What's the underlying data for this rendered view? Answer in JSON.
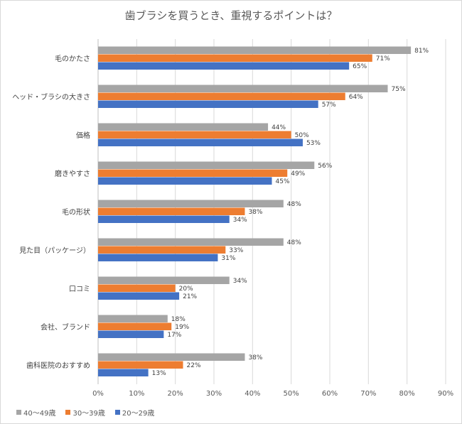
{
  "chart_data": {
    "type": "bar",
    "orientation": "horizontal",
    "title": "歯ブラシを買うとき、重視するポイントは？",
    "categories": [
      "毛のかたさ",
      "ヘッド・ブラシの大きさ",
      "価格",
      "磨きやすさ",
      "毛の形状",
      "見た目（パッケージ）",
      "口コミ",
      "会社、ブランド",
      "歯科医院のおすすめ"
    ],
    "series": [
      {
        "name": "40〜49歳",
        "color": "#a5a5a5",
        "values": [
          81,
          75,
          44,
          56,
          48,
          48,
          34,
          18,
          38
        ]
      },
      {
        "name": "30〜39歳",
        "color": "#ed7d31",
        "values": [
          71,
          64,
          50,
          49,
          38,
          33,
          20,
          19,
          22
        ]
      },
      {
        "name": "20〜29歳",
        "color": "#4472c4",
        "values": [
          65,
          57,
          53,
          45,
          34,
          31,
          21,
          17,
          13
        ]
      }
    ],
    "xlim": [
      0,
      90
    ],
    "xticks": [
      "0%",
      "10%",
      "20%",
      "30%",
      "40%",
      "50%",
      "60%",
      "70%",
      "80%",
      "90%"
    ],
    "value_suffix": "%",
    "grid": true,
    "legend_position": "bottom-left"
  }
}
